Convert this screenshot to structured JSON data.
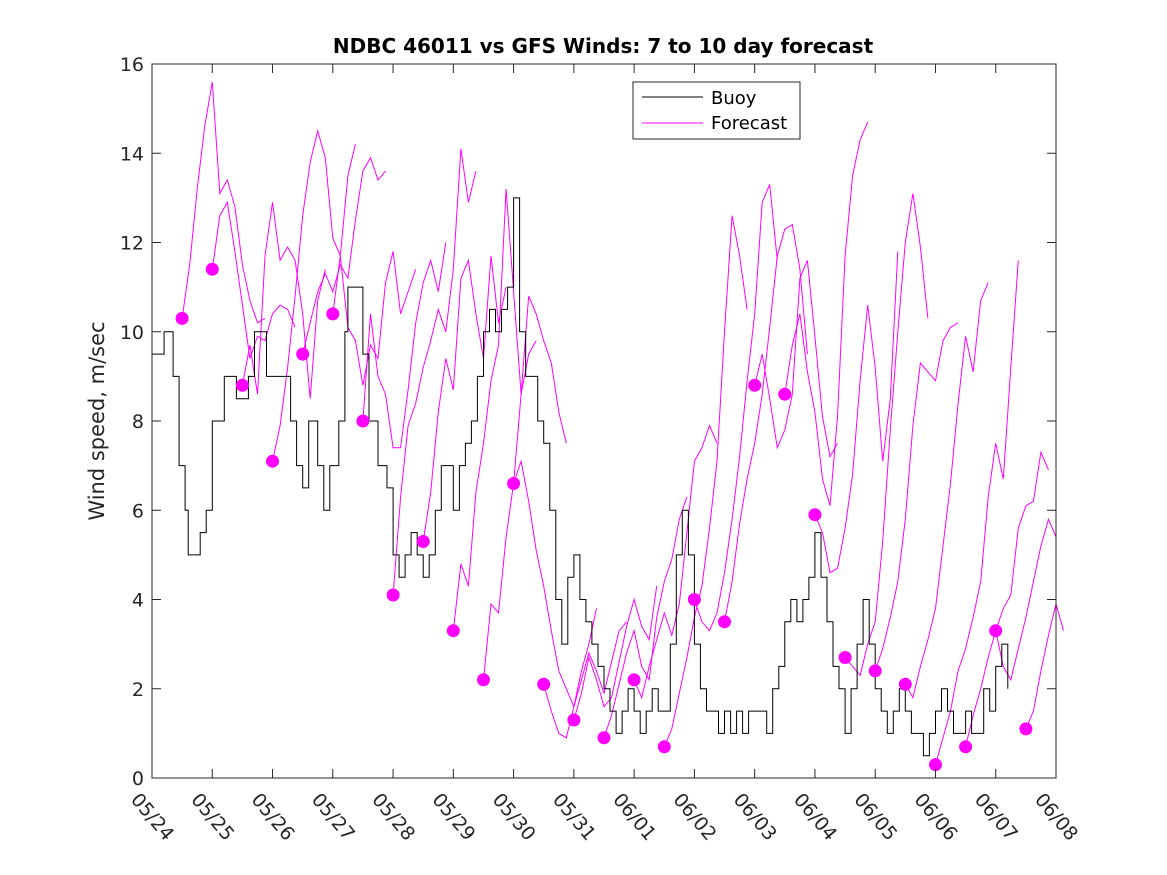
{
  "chart_data": {
    "type": "line",
    "title": "NDBC 46011 vs GFS Winds: 7 to 10 day forecast",
    "xlabel": "",
    "ylabel": "Wind speed, m/sec",
    "x_tick_labels": [
      "05/24",
      "05/25",
      "05/26",
      "05/27",
      "05/28",
      "05/29",
      "05/30",
      "05/31",
      "06/01",
      "06/02",
      "06/03",
      "06/04",
      "06/05",
      "06/06",
      "06/07",
      "06/08"
    ],
    "xlim": [
      0,
      15
    ],
    "ylim": [
      0,
      16
    ],
    "y_ticks": [
      0,
      2,
      4,
      6,
      8,
      10,
      12,
      14,
      16
    ],
    "legend": {
      "position": "top-center",
      "entries": [
        "Buoy",
        "Forecast"
      ]
    },
    "colors": {
      "buoy": "#000000",
      "forecast": "#ff00ff",
      "axes": "#262626"
    },
    "buoy": {
      "name": "Buoy",
      "points": [
        [
          0,
          9.5
        ],
        [
          0.2,
          10
        ],
        [
          0.35,
          9
        ],
        [
          0.45,
          7
        ],
        [
          0.55,
          6
        ],
        [
          0.6,
          5
        ],
        [
          0.8,
          5.5
        ],
        [
          0.9,
          6
        ],
        [
          1.0,
          8
        ],
        [
          1.2,
          9
        ],
        [
          1.4,
          8.5
        ],
        [
          1.6,
          9
        ],
        [
          1.7,
          10
        ],
        [
          1.9,
          9
        ],
        [
          2.1,
          9
        ],
        [
          2.3,
          8
        ],
        [
          2.4,
          7
        ],
        [
          2.5,
          6.5
        ],
        [
          2.6,
          8
        ],
        [
          2.75,
          7
        ],
        [
          2.85,
          6
        ],
        [
          2.95,
          7
        ],
        [
          3.1,
          8
        ],
        [
          3.2,
          10
        ],
        [
          3.25,
          11
        ],
        [
          3.4,
          11
        ],
        [
          3.5,
          9.5
        ],
        [
          3.6,
          8
        ],
        [
          3.75,
          7
        ],
        [
          3.9,
          6.5
        ],
        [
          4.0,
          5
        ],
        [
          4.1,
          4.5
        ],
        [
          4.2,
          5
        ],
        [
          4.3,
          5.5
        ],
        [
          4.4,
          5
        ],
        [
          4.5,
          4.5
        ],
        [
          4.6,
          5
        ],
        [
          4.7,
          6
        ],
        [
          4.8,
          7
        ],
        [
          4.9,
          7
        ],
        [
          5.0,
          6
        ],
        [
          5.1,
          7
        ],
        [
          5.2,
          7.5
        ],
        [
          5.3,
          8
        ],
        [
          5.4,
          9
        ],
        [
          5.5,
          10
        ],
        [
          5.6,
          10.5
        ],
        [
          5.7,
          10
        ],
        [
          5.8,
          10.5
        ],
        [
          5.9,
          11
        ],
        [
          6.0,
          13
        ],
        [
          6.1,
          10
        ],
        [
          6.2,
          9
        ],
        [
          6.3,
          9
        ],
        [
          6.4,
          8
        ],
        [
          6.5,
          7.5
        ],
        [
          6.6,
          6
        ],
        [
          6.7,
          4
        ],
        [
          6.8,
          3
        ],
        [
          6.9,
          4.5
        ],
        [
          7.0,
          5
        ],
        [
          7.1,
          4
        ],
        [
          7.2,
          3.5
        ],
        [
          7.3,
          3
        ],
        [
          7.4,
          2.5
        ],
        [
          7.5,
          2
        ],
        [
          7.6,
          1.5
        ],
        [
          7.7,
          1
        ],
        [
          7.8,
          1.5
        ],
        [
          7.9,
          2
        ],
        [
          8.0,
          1.5
        ],
        [
          8.1,
          1
        ],
        [
          8.2,
          1.5
        ],
        [
          8.3,
          2
        ],
        [
          8.4,
          1.5
        ],
        [
          8.5,
          1.5
        ],
        [
          8.6,
          3
        ],
        [
          8.7,
          5
        ],
        [
          8.8,
          6
        ],
        [
          8.9,
          5
        ],
        [
          9.0,
          3
        ],
        [
          9.1,
          2
        ],
        [
          9.2,
          1.5
        ],
        [
          9.3,
          1.5
        ],
        [
          9.4,
          1
        ],
        [
          9.5,
          1.5
        ],
        [
          9.6,
          1
        ],
        [
          9.7,
          1.5
        ],
        [
          9.8,
          1
        ],
        [
          9.9,
          1.5
        ],
        [
          10.0,
          1.5
        ],
        [
          10.1,
          1.5
        ],
        [
          10.2,
          1
        ],
        [
          10.3,
          2
        ],
        [
          10.4,
          2.5
        ],
        [
          10.5,
          3.5
        ],
        [
          10.6,
          4
        ],
        [
          10.7,
          3.5
        ],
        [
          10.8,
          4
        ],
        [
          10.9,
          4.5
        ],
        [
          11.0,
          5.5
        ],
        [
          11.1,
          4.5
        ],
        [
          11.2,
          3.5
        ],
        [
          11.3,
          2.5
        ],
        [
          11.4,
          2
        ],
        [
          11.5,
          1
        ],
        [
          11.6,
          2
        ],
        [
          11.7,
          3
        ],
        [
          11.8,
          4
        ],
        [
          11.9,
          3
        ],
        [
          12.0,
          2
        ],
        [
          12.1,
          1.5
        ],
        [
          12.2,
          1
        ],
        [
          12.3,
          1.5
        ],
        [
          12.4,
          2
        ],
        [
          12.5,
          1.5
        ],
        [
          12.6,
          1
        ],
        [
          12.7,
          1
        ],
        [
          12.8,
          0.5
        ],
        [
          12.9,
          1
        ],
        [
          13.0,
          1.5
        ],
        [
          13.1,
          2
        ],
        [
          13.2,
          1.5
        ],
        [
          13.3,
          1
        ],
        [
          13.4,
          1
        ],
        [
          13.5,
          1.5
        ],
        [
          13.6,
          1
        ],
        [
          13.7,
          1
        ],
        [
          13.8,
          2
        ],
        [
          13.9,
          1.5
        ],
        [
          14.0,
          2.5
        ],
        [
          14.1,
          3
        ],
        [
          14.2,
          2
        ]
      ]
    },
    "forecast": {
      "name": "Forecast",
      "series": [
        {
          "x0": 0.5,
          "values": [
            10.3,
            11.5,
            13.2,
            14.6,
            15.6,
            13.1,
            13.4,
            12.8,
            11.5,
            10.7,
            10.2,
            10.3
          ]
        },
        {
          "x0": 1.0,
          "values": [
            11.4,
            12.6,
            12.9,
            11.8,
            10.6,
            9.4,
            9.9,
            9.8,
            10.4,
            10.6,
            10.5,
            10.1
          ]
        },
        {
          "x0": 1.5,
          "values": [
            8.8,
            9.7,
            8.6,
            11.7,
            12.9,
            11.6,
            11.9,
            11.6,
            10.4,
            8.5,
            10.7,
            11.4
          ]
        },
        {
          "x0": 2.0,
          "values": [
            7.1,
            7.9,
            9.2,
            10.8,
            12.6,
            13.8,
            14.5,
            13.9,
            12.1,
            11.7,
            13.5,
            14.2
          ]
        },
        {
          "x0": 2.5,
          "values": [
            9.5,
            10.2,
            10.9,
            11.3,
            10.9,
            11.5,
            11.2,
            12.5,
            13.6,
            13.9,
            13.4,
            13.6
          ]
        },
        {
          "x0": 3.0,
          "values": [
            10.4,
            11.7,
            10.1,
            9.8,
            8.8,
            9.7,
            9.4,
            11.1,
            11.8,
            10.4,
            10.9,
            11.4
          ]
        },
        {
          "x0": 3.5,
          "values": [
            8.0,
            10.4,
            9.0,
            8.6,
            7.4,
            7.4,
            8.7,
            10.2,
            11.1,
            11.6,
            10.9,
            12.0
          ]
        },
        {
          "x0": 4.0,
          "values": [
            4.1,
            6.3,
            7.9,
            8.4,
            9.2,
            9.8,
            10.5,
            10.0,
            11.4,
            14.1,
            12.9,
            13.6
          ]
        },
        {
          "x0": 4.5,
          "values": [
            5.3,
            6.4,
            8.2,
            9.4,
            8.7,
            11.2,
            11.6,
            10.4,
            9.4,
            11.7,
            10.2,
            11.0
          ]
        },
        {
          "x0": 5.0,
          "values": [
            3.3,
            4.8,
            4.3,
            6.4,
            7.5,
            8.9,
            9.7,
            13.2,
            10.9,
            8.6,
            9.5,
            9.8
          ]
        },
        {
          "x0": 5.5,
          "values": [
            2.2,
            3.9,
            3.7,
            5.4,
            6.6,
            8.6,
            10.8,
            10.4,
            9.8,
            9.3,
            8.2,
            7.5
          ]
        },
        {
          "x0": 6.0,
          "values": [
            6.6,
            7.1,
            6.2,
            5.1,
            4.3,
            3.3,
            2.4,
            2.0,
            1.6,
            2.4,
            3.0,
            3.8
          ]
        },
        {
          "x0": 6.5,
          "values": [
            2.1,
            1.5,
            1.0,
            0.9,
            1.6,
            2.2,
            2.8,
            2.4,
            1.9,
            2.6,
            3.3,
            3.5
          ]
        },
        {
          "x0": 7.0,
          "values": [
            1.3,
            1.9,
            2.7,
            2.2,
            1.6,
            1.8,
            2.6,
            3.4,
            4.0,
            3.4,
            3.1,
            4.3
          ]
        },
        {
          "x0": 7.5,
          "values": [
            0.9,
            1.4,
            2.1,
            2.8,
            3.3,
            2.5,
            2.2,
            3.6,
            4.4,
            4.9,
            5.8,
            6.3
          ]
        },
        {
          "x0": 8.0,
          "values": [
            2.2,
            1.8,
            2.5,
            3.1,
            3.7,
            3.2,
            3.9,
            5.5,
            7.1,
            7.4,
            7.9,
            7.5
          ]
        },
        {
          "x0": 8.5,
          "values": [
            0.7,
            1.1,
            1.9,
            2.7,
            3.6,
            4.3,
            5.6,
            7.1,
            10.0,
            12.6,
            11.7,
            10.5
          ]
        },
        {
          "x0": 9.0,
          "values": [
            4.0,
            3.5,
            3.3,
            3.7,
            4.6,
            5.8,
            7.2,
            8.9,
            10.4,
            12.9,
            13.3,
            11.6
          ]
        },
        {
          "x0": 9.5,
          "values": [
            3.5,
            4.4,
            5.7,
            6.7,
            7.5,
            8.6,
            10.1,
            11.7,
            12.3,
            12.4,
            11.4,
            9.5
          ]
        },
        {
          "x0": 10.0,
          "values": [
            8.8,
            9.5,
            8.5,
            7.4,
            7.8,
            8.6,
            11.2,
            11.6,
            9.9,
            8.1,
            7.2,
            7.5
          ]
        },
        {
          "x0": 10.5,
          "values": [
            8.6,
            9.7,
            10.4,
            9.1,
            8.2,
            6.7,
            6.1,
            8.1,
            11.7,
            13.5,
            14.3,
            14.7
          ]
        },
        {
          "x0": 11.0,
          "values": [
            5.9,
            5.5,
            4.6,
            4.7,
            5.6,
            6.8,
            8.9,
            10.6,
            9.2,
            7.1,
            8.5,
            11.8
          ]
        },
        {
          "x0": 11.5,
          "values": [
            2.7,
            2.5,
            2.3,
            3.0,
            3.5,
            5.3,
            7.8,
            10.0,
            12.0,
            13.1,
            11.9,
            10.3
          ]
        },
        {
          "x0": 12.0,
          "values": [
            2.4,
            2.9,
            3.6,
            4.4,
            5.8,
            7.9,
            9.3,
            9.1,
            8.9,
            9.8,
            10.1,
            10.2
          ]
        },
        {
          "x0": 12.5,
          "values": [
            2.1,
            1.8,
            2.5,
            3.1,
            3.8,
            5.2,
            6.6,
            8.4,
            9.9,
            9.1,
            10.7,
            11.1
          ]
        },
        {
          "x0": 13.0,
          "values": [
            0.3,
            0.9,
            1.5,
            2.4,
            2.9,
            3.6,
            4.4,
            6.3,
            7.5,
            6.7,
            9.2,
            11.6
          ]
        },
        {
          "x0": 13.5,
          "values": [
            0.7,
            1.4,
            2.0,
            2.7,
            3.3,
            3.8,
            4.1,
            5.6,
            6.1,
            6.2,
            7.3,
            6.9
          ]
        },
        {
          "x0": 14.0,
          "values": [
            3.3,
            2.5,
            2.2,
            2.9,
            3.6,
            4.4,
            5.2,
            5.8,
            5.4
          ]
        },
        {
          "x0": 14.5,
          "values": [
            1.1,
            1.5,
            2.4,
            3.2,
            3.9,
            3.3
          ]
        }
      ],
      "markers": [
        [
          0.5,
          10.3
        ],
        [
          1.0,
          11.4
        ],
        [
          1.5,
          8.8
        ],
        [
          2.0,
          7.1
        ],
        [
          2.5,
          9.5
        ],
        [
          3.0,
          10.4
        ],
        [
          3.5,
          8.0
        ],
        [
          4.0,
          4.1
        ],
        [
          4.5,
          5.3
        ],
        [
          5.0,
          3.3
        ],
        [
          5.5,
          2.2
        ],
        [
          6.0,
          6.6
        ],
        [
          6.5,
          2.1
        ],
        [
          7.0,
          1.3
        ],
        [
          7.5,
          0.9
        ],
        [
          8.0,
          2.2
        ],
        [
          8.5,
          0.7
        ],
        [
          9.0,
          4.0
        ],
        [
          9.5,
          3.5
        ],
        [
          10.0,
          8.8
        ],
        [
          10.5,
          8.6
        ],
        [
          11.0,
          5.9
        ],
        [
          11.5,
          2.7
        ],
        [
          12.0,
          2.4
        ],
        [
          12.5,
          2.1
        ],
        [
          13.0,
          0.3
        ],
        [
          13.5,
          0.7
        ],
        [
          14.0,
          3.3
        ],
        [
          14.5,
          1.1
        ]
      ]
    }
  }
}
